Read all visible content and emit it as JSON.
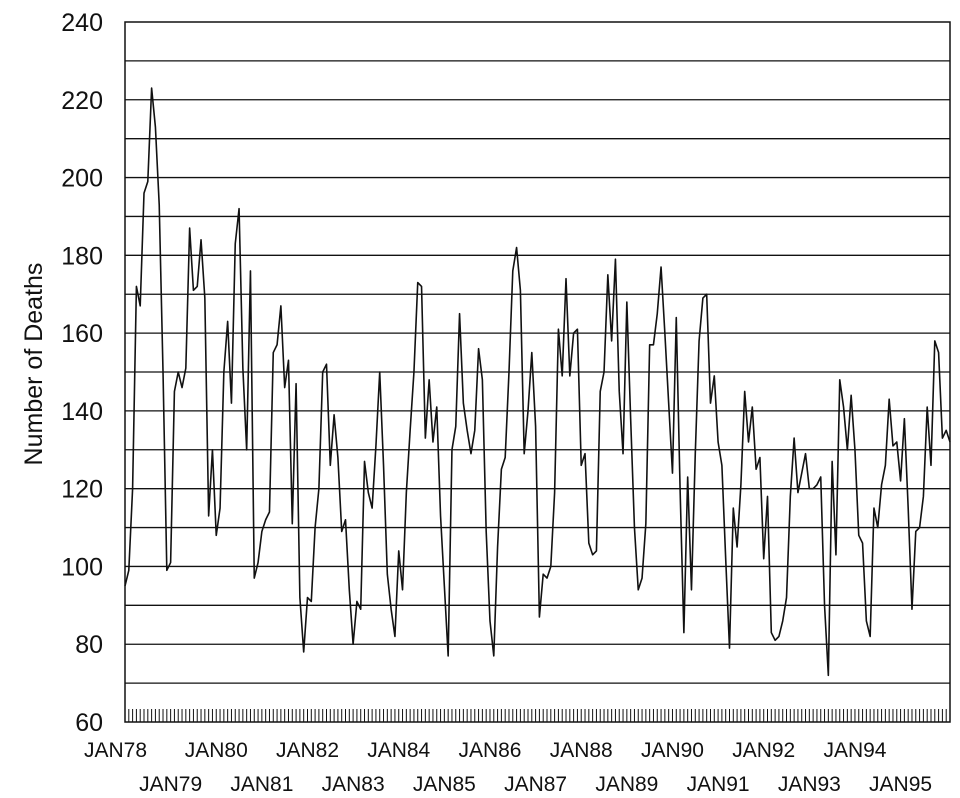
{
  "chart_data": {
    "type": "line",
    "title": "",
    "xlabel": "",
    "ylabel": "Number of Deaths",
    "ylim": [
      60,
      240
    ],
    "y_ticks": [
      "60",
      "80",
      "100",
      "120",
      "140",
      "160",
      "180",
      "200",
      "220",
      "240"
    ],
    "grid": "horizontal every 10",
    "x_range": [
      "1978-01",
      "1995-12"
    ],
    "x_tick_labels": [
      "JAN78",
      "JAN79",
      "JAN80",
      "JAN81",
      "JAN82",
      "JAN83",
      "JAN84",
      "JAN85",
      "JAN86",
      "JAN87",
      "JAN88",
      "JAN89",
      "JAN90",
      "JAN91",
      "JAN92",
      "JAN93",
      "JAN94",
      "JAN95"
    ],
    "line_color": "#111111",
    "series": [
      {
        "values": [
          95,
          99,
          120,
          172,
          167,
          196,
          199,
          223,
          213,
          193,
          150,
          99,
          101,
          145,
          150,
          146,
          151,
          187,
          171,
          172,
          184,
          169,
          113,
          130,
          108,
          115,
          150,
          163,
          142,
          183,
          192,
          151,
          130,
          176,
          97,
          101,
          109,
          112,
          114,
          155,
          157,
          167,
          146,
          153,
          111,
          147,
          92,
          78,
          92,
          91,
          110,
          120,
          150,
          152,
          126,
          139,
          128,
          109,
          112,
          94,
          80,
          91,
          89,
          127,
          119,
          115,
          131,
          150,
          126,
          98,
          89,
          82,
          104,
          94,
          119,
          135,
          150,
          173,
          172,
          133,
          148,
          132,
          141,
          113,
          95,
          77,
          130,
          136,
          165,
          142,
          135,
          129,
          135,
          156,
          148,
          109,
          86,
          77,
          105,
          125,
          128,
          150,
          176,
          182,
          171,
          129,
          140,
          155,
          136,
          87,
          98,
          97,
          100,
          119,
          161,
          149,
          174,
          149,
          160,
          161,
          126,
          129,
          106,
          103,
          104,
          145,
          150,
          175,
          158,
          179,
          145,
          129,
          168,
          138,
          110,
          94,
          97,
          111,
          157,
          157,
          165,
          177,
          160,
          142,
          124,
          164,
          120,
          83,
          123,
          94,
          129,
          158,
          169,
          170,
          142,
          149,
          132,
          126,
          102,
          79,
          115,
          105,
          121,
          145,
          132,
          141,
          125,
          128,
          102,
          118,
          83,
          81,
          82,
          86,
          92,
          118,
          133,
          119,
          124,
          129,
          120,
          120,
          121,
          123,
          90,
          72,
          127,
          103,
          148,
          141,
          130,
          144,
          130,
          108,
          106,
          86,
          82,
          115,
          110,
          121,
          126,
          143,
          131,
          132,
          122,
          138,
          115,
          89,
          109,
          110,
          118,
          141,
          126,
          158,
          155,
          133,
          135,
          132
        ]
      }
    ]
  }
}
